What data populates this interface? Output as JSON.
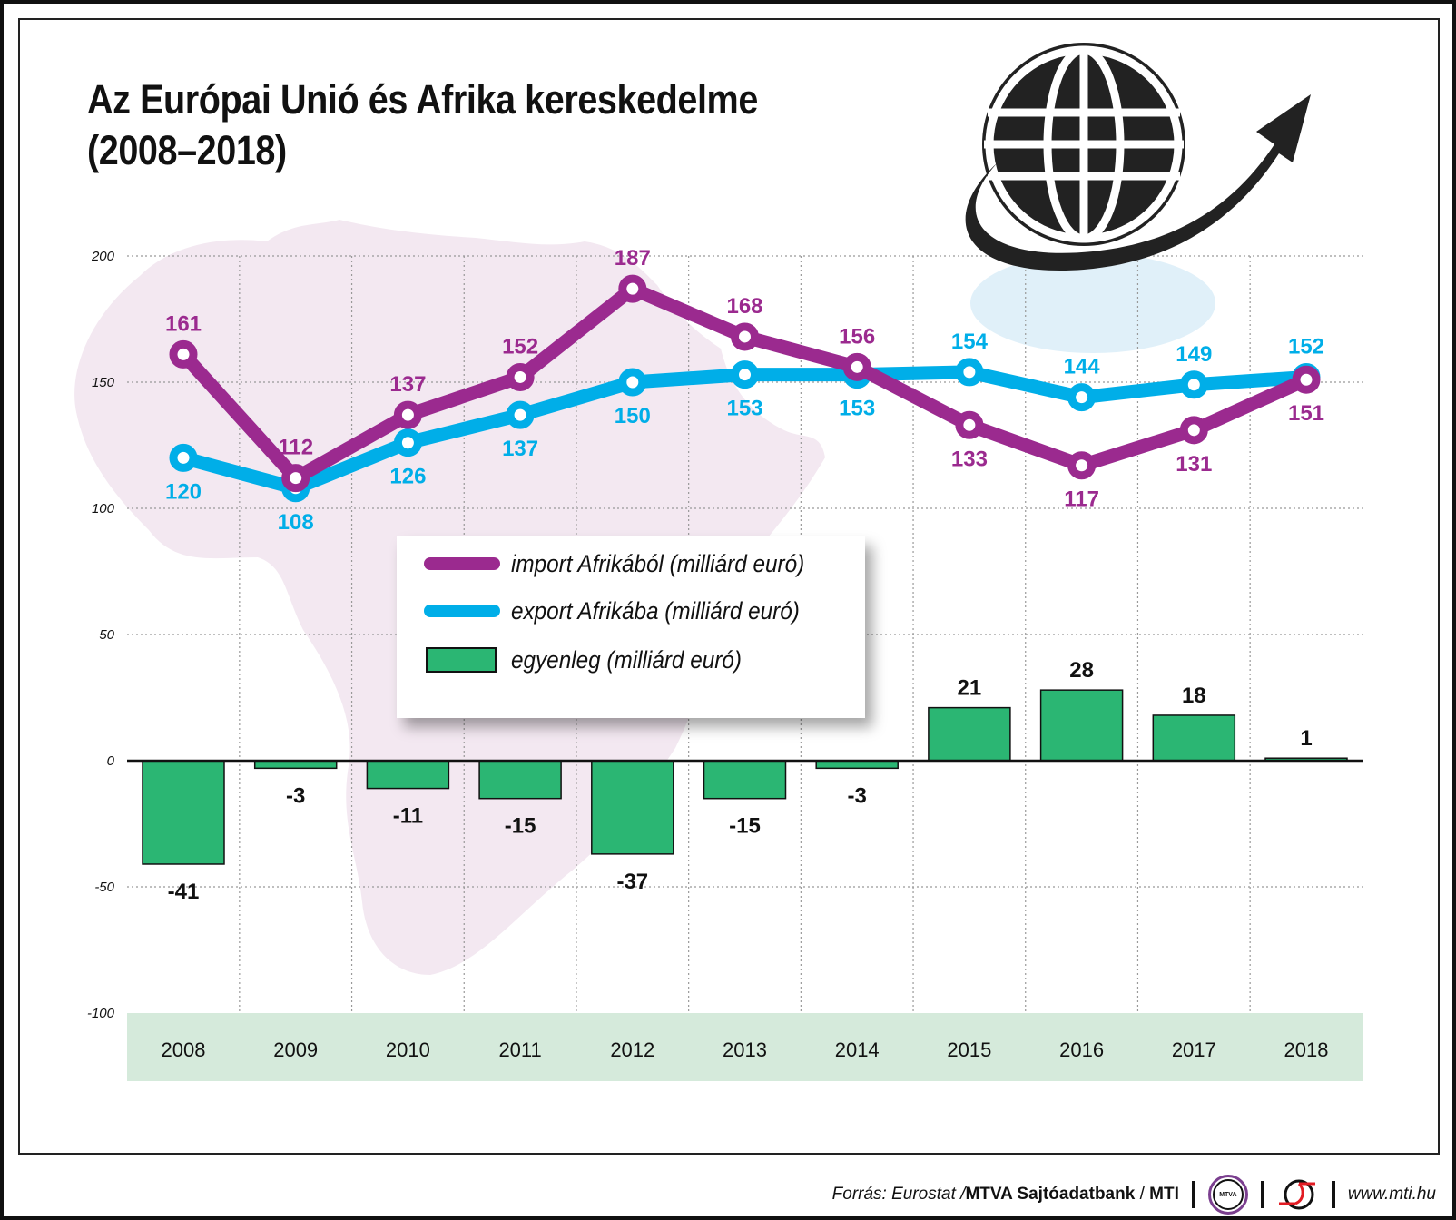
{
  "title_line1": "Az Európai Unió és Afrika kereskedelme",
  "title_line2": "(2008–2018)",
  "chart_data": {
    "type": "line+bar",
    "categories": [
      "2008",
      "2009",
      "2010",
      "2011",
      "2012",
      "2013",
      "2014",
      "2015",
      "2016",
      "2017",
      "2018"
    ],
    "series": [
      {
        "name": "import Afrikából (milliárd euró)",
        "type": "line",
        "color": "#9b2a8f",
        "values": [
          161,
          112,
          137,
          152,
          187,
          168,
          156,
          133,
          117,
          131,
          151
        ],
        "label_pos": [
          "above",
          "above",
          "above",
          "above",
          "above",
          "above",
          "above",
          "below",
          "below",
          "below",
          "below"
        ]
      },
      {
        "name": "export Afrikába (milliárd euró)",
        "type": "line",
        "color": "#00aee8",
        "values": [
          120,
          108,
          126,
          137,
          150,
          153,
          153,
          154,
          144,
          149,
          152
        ],
        "label_pos": [
          "below",
          "below",
          "below",
          "below",
          "below",
          "below",
          "below",
          "above",
          "above",
          "above",
          "above"
        ]
      },
      {
        "name": "egyenleg (milliárd euró)",
        "type": "bar",
        "color": "#2bb673",
        "values": [
          -41,
          -3,
          -11,
          -15,
          -37,
          -15,
          -3,
          21,
          28,
          18,
          1
        ]
      }
    ],
    "ylim": [
      -100,
      200
    ],
    "yticks": [
      "200",
      "150",
      "100",
      "50",
      "0",
      "-50",
      "-100"
    ],
    "grid": true,
    "legend_position": "center"
  },
  "legend": {
    "import": "import Afrikából (milliárd euró)",
    "export": "export Afrikába (milliárd euró)",
    "balance": "egyenleg (milliárd euró)"
  },
  "footer": {
    "source_prefix": "Forrás: Eurostat / ",
    "source_bold": "MTVA Sajtóadatbank",
    "sep": " / ",
    "mti": "MTI",
    "mtva_logo": "MTVA",
    "url": "www.mti.hu"
  },
  "colors": {
    "import": "#9b2a8f",
    "export": "#00aee8",
    "balance": "#2bb673",
    "year_band": "#d5eadb",
    "africa": "#f3e8f1"
  }
}
